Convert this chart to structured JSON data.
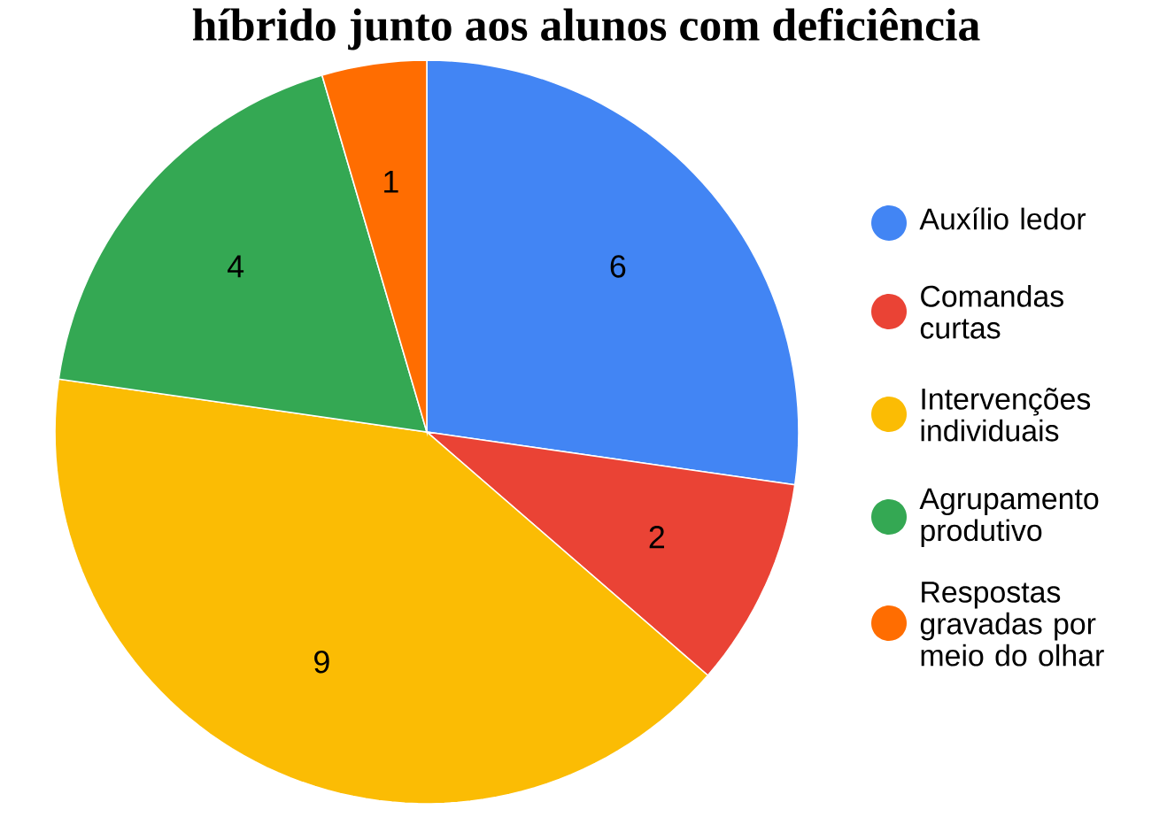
{
  "chart_data": {
    "type": "pie",
    "title": "híbrido junto aos alunos com deficiência",
    "categories": [
      "Auxílio ledor",
      "Comandas curtas",
      "Intervenções individuais",
      "Agrupamento produtivo",
      "Respostas gravadas por meio do olhar"
    ],
    "values": [
      6,
      2,
      9,
      4,
      1
    ],
    "colors": [
      "#4285f4",
      "#ea4335",
      "#fbbc04",
      "#34a853",
      "#ff6d01"
    ],
    "data_labels": true,
    "legend": "right"
  }
}
